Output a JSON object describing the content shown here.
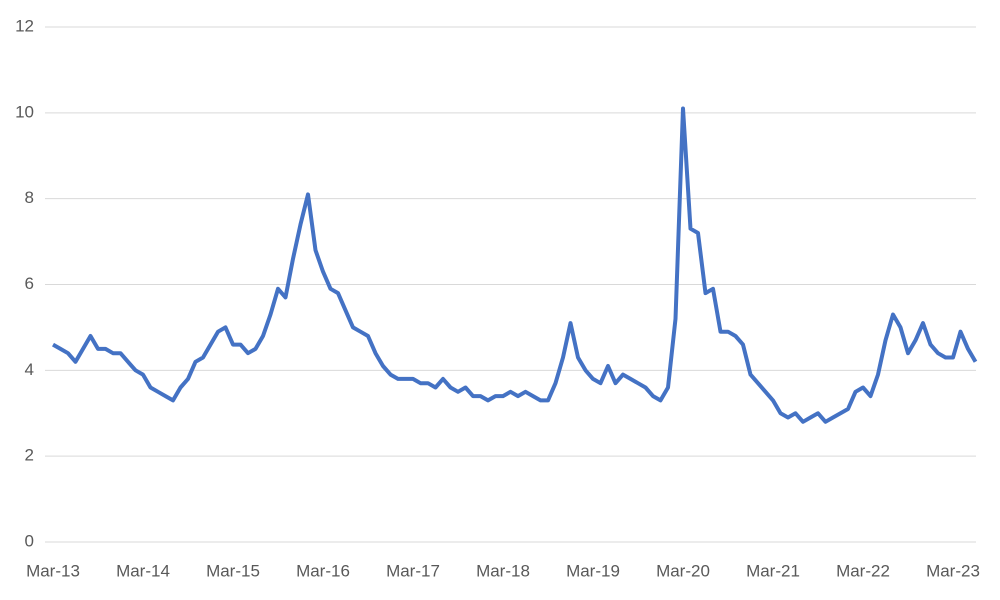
{
  "chart_data": {
    "type": "line",
    "categories": [
      "Mar-13",
      null,
      null,
      null,
      null,
      null,
      null,
      null,
      null,
      null,
      null,
      null,
      "Mar-14",
      null,
      null,
      null,
      null,
      null,
      null,
      null,
      null,
      null,
      null,
      null,
      "Mar-15",
      null,
      null,
      null,
      null,
      null,
      null,
      null,
      null,
      null,
      null,
      null,
      "Mar-16",
      null,
      null,
      null,
      null,
      null,
      null,
      null,
      null,
      null,
      null,
      null,
      "Mar-17",
      null,
      null,
      null,
      null,
      null,
      null,
      null,
      null,
      null,
      null,
      null,
      "Mar-18",
      null,
      null,
      null,
      null,
      null,
      null,
      null,
      null,
      null,
      null,
      null,
      "Mar-19",
      null,
      null,
      null,
      null,
      null,
      null,
      null,
      null,
      null,
      null,
      null,
      "Mar-20",
      null,
      null,
      null,
      null,
      null,
      null,
      null,
      null,
      null,
      null,
      null,
      "Mar-21",
      null,
      null,
      null,
      null,
      null,
      null,
      null,
      null,
      null,
      null,
      null,
      "Mar-22",
      null,
      null,
      null,
      null,
      null,
      null,
      null,
      null,
      null,
      null,
      null,
      "Mar-23",
      null,
      null,
      null
    ],
    "values": [
      4.6,
      4.5,
      4.4,
      4.2,
      4.5,
      4.8,
      4.5,
      4.5,
      4.4,
      4.4,
      4.2,
      4.0,
      3.9,
      3.6,
      3.5,
      3.4,
      3.3,
      3.6,
      3.8,
      4.2,
      4.3,
      4.6,
      4.9,
      5.0,
      4.6,
      4.6,
      4.4,
      4.5,
      4.8,
      5.3,
      5.9,
      5.7,
      6.6,
      7.4,
      8.1,
      6.8,
      6.3,
      5.9,
      5.8,
      5.4,
      5.0,
      4.9,
      4.8,
      4.4,
      4.1,
      3.9,
      3.8,
      3.8,
      3.8,
      3.7,
      3.7,
      3.6,
      3.8,
      3.6,
      3.5,
      3.6,
      3.4,
      3.4,
      3.3,
      3.4,
      3.4,
      3.5,
      3.4,
      3.5,
      3.4,
      3.3,
      3.3,
      3.7,
      4.3,
      5.1,
      4.3,
      4.0,
      3.8,
      3.7,
      4.1,
      3.7,
      3.9,
      3.8,
      3.7,
      3.6,
      3.4,
      3.3,
      3.6,
      5.2,
      10.1,
      7.3,
      7.2,
      5.8,
      5.9,
      4.9,
      4.9,
      4.8,
      4.6,
      3.9,
      3.7,
      3.5,
      3.3,
      3.0,
      2.9,
      3.0,
      2.8,
      2.9,
      3.0,
      2.8,
      2.9,
      3.0,
      3.1,
      3.5,
      3.6,
      3.4,
      3.9,
      4.7,
      5.3,
      5.0,
      4.4,
      4.7,
      5.1,
      4.6,
      4.4,
      4.3,
      4.3,
      4.9,
      4.5,
      4.2
    ],
    "color": "#4472c4",
    "ylim": [
      0,
      12
    ],
    "yticks": [
      0,
      2,
      4,
      6,
      8,
      10,
      12
    ],
    "grid": true
  }
}
